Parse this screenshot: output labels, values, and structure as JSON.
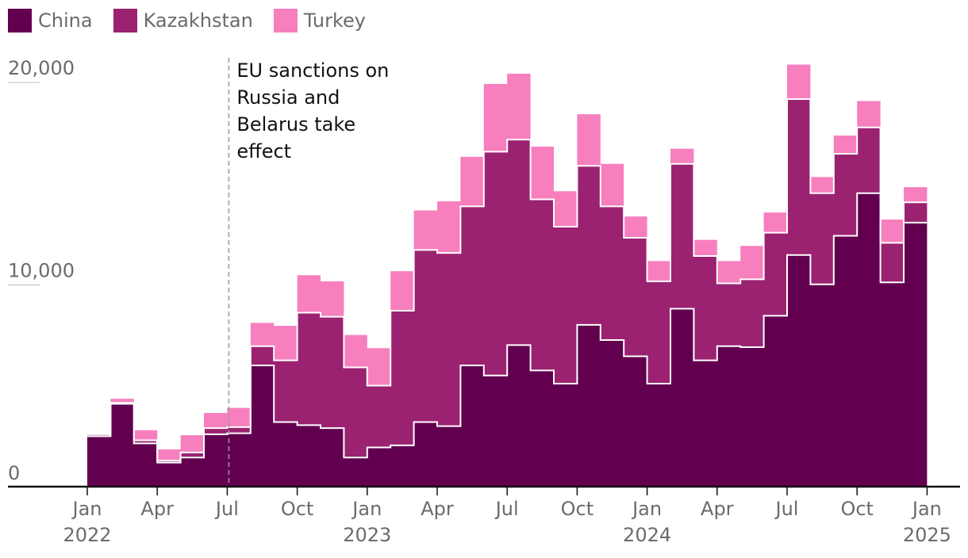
{
  "chart_data": {
    "type": "area",
    "title": "",
    "xlabel": "",
    "ylabel": "",
    "stacked": true,
    "step": true,
    "ylim": [
      0,
      21000
    ],
    "y_ticks": [
      {
        "value": 0,
        "label": "0"
      },
      {
        "value": 10000,
        "label": "10,000"
      },
      {
        "value": 20000,
        "label": "20,000"
      }
    ],
    "x_ticks": [
      {
        "month": "2022-01",
        "label": "Jan",
        "year": "2022"
      },
      {
        "month": "2022-04",
        "label": "Apr",
        "year": ""
      },
      {
        "month": "2022-07",
        "label": "Jul",
        "year": ""
      },
      {
        "month": "2022-10",
        "label": "Oct",
        "year": ""
      },
      {
        "month": "2023-01",
        "label": "Jan",
        "year": "2023"
      },
      {
        "month": "2023-04",
        "label": "Apr",
        "year": ""
      },
      {
        "month": "2023-07",
        "label": "Jul",
        "year": ""
      },
      {
        "month": "2023-10",
        "label": "Oct",
        "year": ""
      },
      {
        "month": "2024-01",
        "label": "Jan",
        "year": "2024"
      },
      {
        "month": "2024-04",
        "label": "Apr",
        "year": ""
      },
      {
        "month": "2024-07",
        "label": "Jul",
        "year": ""
      },
      {
        "month": "2024-10",
        "label": "Oct",
        "year": ""
      },
      {
        "month": "2025-01",
        "label": "Jan",
        "year": "2025"
      }
    ],
    "months": [
      "2022-01",
      "2022-02",
      "2022-03",
      "2022-04",
      "2022-05",
      "2022-06",
      "2022-07",
      "2022-08",
      "2022-09",
      "2022-10",
      "2022-11",
      "2022-12",
      "2023-01",
      "2023-02",
      "2023-03",
      "2023-04",
      "2023-05",
      "2023-06",
      "2023-07",
      "2023-08",
      "2023-09",
      "2023-10",
      "2023-11",
      "2023-12",
      "2024-01",
      "2024-02",
      "2024-03",
      "2024-04",
      "2024-05",
      "2024-06",
      "2024-07",
      "2024-08",
      "2024-09",
      "2024-10",
      "2024-11",
      "2024-12"
    ],
    "series": [
      {
        "name": "China",
        "color": "#62004f",
        "values": [
          2450,
          4050,
          2100,
          1150,
          1400,
          2550,
          2600,
          5950,
          3150,
          3000,
          2850,
          1400,
          1900,
          2000,
          3150,
          2950,
          5950,
          5450,
          6950,
          5700,
          5050,
          7950,
          7200,
          6400,
          5050,
          8750,
          6200,
          6900,
          6850,
          8400,
          11400,
          9950,
          12350,
          14450,
          10050,
          13000
        ]
      },
      {
        "name": "Kazakhstan",
        "color": "#9b2271",
        "values": [
          100,
          50,
          150,
          100,
          250,
          300,
          300,
          950,
          3050,
          5550,
          5500,
          4450,
          3050,
          6650,
          8500,
          8550,
          7850,
          11050,
          10150,
          8450,
          7750,
          7850,
          6600,
          5850,
          5050,
          7150,
          5150,
          3100,
          3350,
          4100,
          7700,
          4500,
          4050,
          3250,
          1950,
          1000
        ]
      },
      {
        "name": "Turkey",
        "color": "#f77fbe",
        "values": [
          0,
          200,
          500,
          550,
          850,
          750,
          950,
          1150,
          1700,
          1850,
          1750,
          1600,
          1850,
          1950,
          1950,
          2550,
          2450,
          3350,
          3250,
          2600,
          1750,
          2550,
          2100,
          1050,
          1000,
          750,
          800,
          1100,
          1650,
          1000,
          1700,
          800,
          900,
          1300,
          1150,
          750
        ]
      }
    ],
    "annotation": {
      "month": "2022-07",
      "lines": [
        "EU sanctions on",
        "Russia and",
        "Belarus take",
        "effect"
      ]
    },
    "legend_position": "top-left",
    "grid": false
  }
}
